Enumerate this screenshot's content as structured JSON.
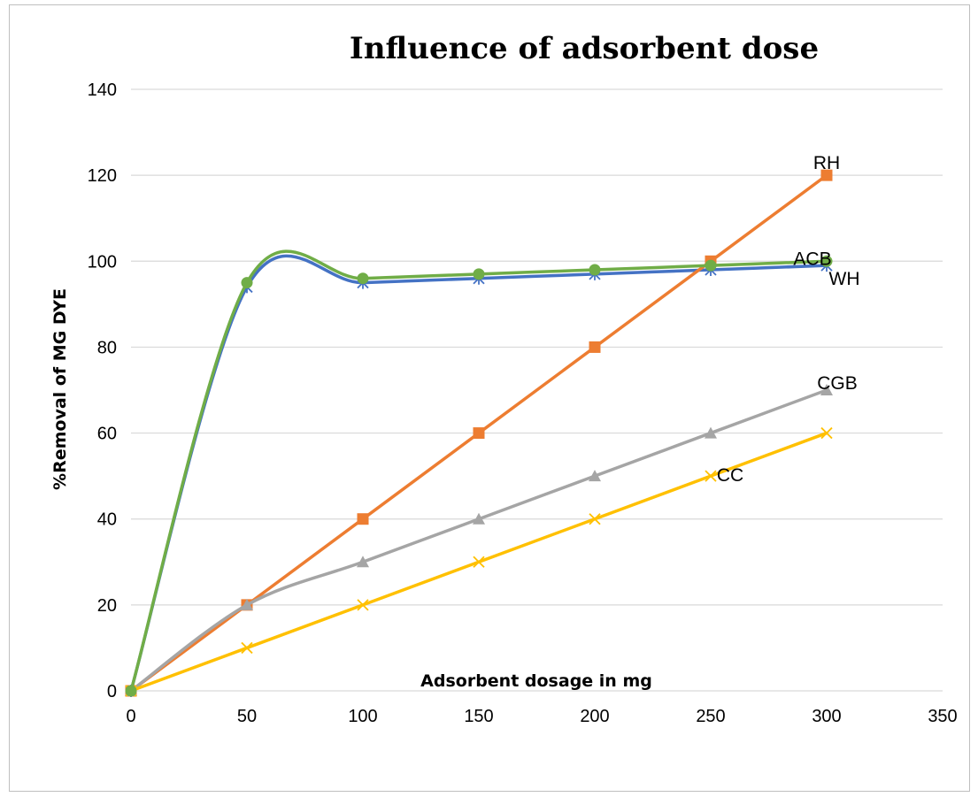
{
  "chart_data": {
    "type": "line",
    "title": "Influence of adsorbent dose",
    "xlabel": "Adsorbent dosage in mg",
    "ylabel": "%Removal of MG DYE",
    "xlim": [
      0,
      350
    ],
    "ylim": [
      0,
      140
    ],
    "xticks": [
      0,
      50,
      100,
      150,
      200,
      250,
      300,
      350
    ],
    "yticks": [
      0,
      20,
      40,
      60,
      80,
      100,
      120,
      140
    ],
    "grid": "horizontal",
    "legend": "none (series labeled inline)",
    "series": [
      {
        "name": "WH",
        "color": "#4472c4",
        "marker": "star",
        "smooth": true,
        "x": [
          0,
          50,
          100,
          150,
          200,
          250,
          300
        ],
        "y": [
          0,
          94,
          95,
          96,
          97,
          98,
          99
        ]
      },
      {
        "name": "RH",
        "color": "#ed7d31",
        "marker": "square",
        "smooth": false,
        "x": [
          0,
          50,
          100,
          150,
          200,
          250,
          300
        ],
        "y": [
          0,
          20,
          40,
          60,
          80,
          100,
          120
        ]
      },
      {
        "name": "CGB",
        "color": "#a5a5a5",
        "marker": "triangle",
        "smooth": true,
        "x": [
          0,
          50,
          100,
          150,
          200,
          250,
          300
        ],
        "y": [
          0,
          20,
          30,
          40,
          50,
          60,
          70
        ]
      },
      {
        "name": "CC",
        "color": "#ffc000",
        "marker": "x",
        "smooth": false,
        "x": [
          0,
          50,
          100,
          150,
          200,
          250,
          300
        ],
        "y": [
          0,
          10,
          20,
          30,
          40,
          50,
          60
        ]
      },
      {
        "name": "ACB",
        "color": "#70ad47",
        "marker": "circle",
        "smooth": true,
        "x": [
          0,
          50,
          100,
          150,
          200,
          250,
          300
        ],
        "y": [
          0,
          95,
          96,
          97,
          98,
          99,
          100
        ]
      }
    ]
  }
}
